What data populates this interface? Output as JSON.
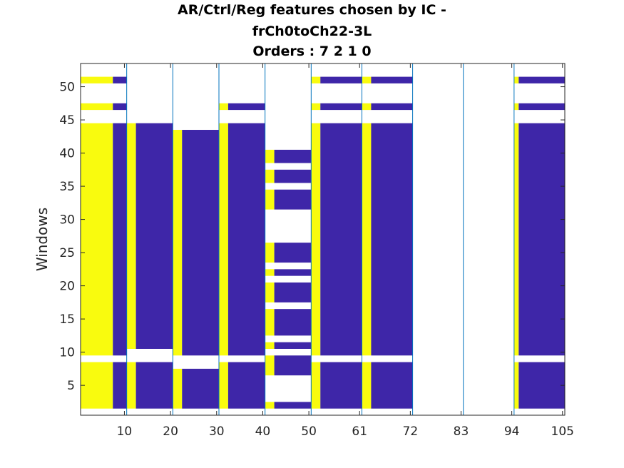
{
  "title_lines": [
    "AR/Ctrl/Reg features chosen by IC -",
    "frCh0toCh22-3L",
    "Orders : 7 2 1 0"
  ],
  "chart_data": {
    "type": "heatmap",
    "ylabel": "Windows",
    "xlabel": "",
    "x_range": [
      0.5,
      105.5
    ],
    "y_range": [
      0.5,
      53.5
    ],
    "x_ticks": [
      10,
      20,
      30,
      40,
      50,
      61,
      72,
      83,
      94,
      105
    ],
    "y_ticks": [
      5,
      10,
      15,
      20,
      25,
      30,
      35,
      40,
      45,
      50
    ],
    "grid": false,
    "colors": {
      "yellow": "#f9fb0e",
      "blue": "#3e26a8",
      "white": "#ffffff",
      "separator": "#0072bd"
    },
    "group_separators": [
      10.5,
      20.5,
      30.5,
      40.5,
      50.5,
      61.5,
      72.5,
      83.5,
      94.5
    ],
    "blocks": [
      {
        "x": [
          0.5,
          7.5
        ],
        "color": "yellow",
        "windows": [
          [
            1.5,
            8.5
          ],
          [
            9.5,
            44.5
          ],
          [
            46.5,
            47.5
          ],
          [
            50.5,
            51.5
          ]
        ]
      },
      {
        "x": [
          7.5,
          10.5
        ],
        "color": "blue",
        "windows": [
          [
            1.5,
            8.5
          ],
          [
            9.5,
            44.5
          ],
          [
            46.5,
            47.5
          ],
          [
            50.5,
            51.5
          ]
        ]
      },
      {
        "x": [
          10.5,
          12.5
        ],
        "color": "yellow",
        "windows": [
          [
            1.5,
            8.5
          ],
          [
            10.5,
            44.5
          ]
        ]
      },
      {
        "x": [
          12.5,
          20.5
        ],
        "color": "blue",
        "windows": [
          [
            1.5,
            8.5
          ],
          [
            10.5,
            44.5
          ]
        ]
      },
      {
        "x": [
          20.5,
          22.5
        ],
        "color": "yellow",
        "windows": [
          [
            1.5,
            7.5
          ],
          [
            9.5,
            43.5
          ]
        ]
      },
      {
        "x": [
          22.5,
          30.5
        ],
        "color": "blue",
        "windows": [
          [
            1.5,
            7.5
          ],
          [
            9.5,
            43.5
          ]
        ]
      },
      {
        "x": [
          30.5,
          32.5
        ],
        "color": "yellow",
        "windows": [
          [
            1.5,
            8.5
          ],
          [
            9.5,
            44.5
          ],
          [
            46.5,
            47.5
          ]
        ]
      },
      {
        "x": [
          32.5,
          40.5
        ],
        "color": "blue",
        "windows": [
          [
            1.5,
            8.5
          ],
          [
            9.5,
            44.5
          ],
          [
            46.5,
            47.5
          ]
        ]
      },
      {
        "x": [
          40.5,
          42.5
        ],
        "color": "yellow",
        "windows": [
          [
            1.5,
            2.5
          ],
          [
            6.5,
            9.5
          ],
          [
            10.5,
            11.5
          ],
          [
            12.5,
            16.5
          ],
          [
            17.5,
            20.5
          ],
          [
            21.5,
            22.5
          ],
          [
            23.5,
            26.5
          ],
          [
            31.5,
            34.5
          ],
          [
            35.5,
            37.5
          ],
          [
            38.5,
            40.5
          ]
        ]
      },
      {
        "x": [
          42.5,
          50.5
        ],
        "color": "blue",
        "windows": [
          [
            1.5,
            2.5
          ],
          [
            6.5,
            9.5
          ],
          [
            10.5,
            11.5
          ],
          [
            12.5,
            16.5
          ],
          [
            17.5,
            20.5
          ],
          [
            21.5,
            22.5
          ],
          [
            23.5,
            26.5
          ],
          [
            31.5,
            34.5
          ],
          [
            35.5,
            37.5
          ],
          [
            38.5,
            40.5
          ]
        ]
      },
      {
        "x": [
          50.5,
          52.5
        ],
        "color": "yellow",
        "windows": [
          [
            1.5,
            8.5
          ],
          [
            9.5,
            44.5
          ],
          [
            46.5,
            47.5
          ],
          [
            50.5,
            51.5
          ]
        ]
      },
      {
        "x": [
          52.5,
          61.5
        ],
        "color": "blue",
        "windows": [
          [
            1.5,
            8.5
          ],
          [
            9.5,
            44.5
          ],
          [
            46.5,
            47.5
          ],
          [
            50.5,
            51.5
          ]
        ]
      },
      {
        "x": [
          61.5,
          63.5
        ],
        "color": "yellow",
        "windows": [
          [
            1.5,
            8.5
          ],
          [
            9.5,
            44.5
          ],
          [
            46.5,
            47.5
          ],
          [
            50.5,
            51.5
          ]
        ]
      },
      {
        "x": [
          63.5,
          72.5
        ],
        "color": "blue",
        "windows": [
          [
            1.5,
            8.5
          ],
          [
            9.5,
            44.5
          ],
          [
            46.5,
            47.5
          ],
          [
            50.5,
            51.5
          ]
        ]
      },
      {
        "x": [
          94.5,
          95.5
        ],
        "color": "yellow",
        "windows": [
          [
            1.5,
            8.5
          ],
          [
            9.5,
            44.5
          ],
          [
            46.5,
            47.5
          ],
          [
            50.5,
            51.5
          ]
        ]
      },
      {
        "x": [
          95.5,
          105.5
        ],
        "color": "blue",
        "windows": [
          [
            1.5,
            8.5
          ],
          [
            9.5,
            44.5
          ],
          [
            46.5,
            47.5
          ],
          [
            50.5,
            51.5
          ]
        ]
      }
    ]
  }
}
